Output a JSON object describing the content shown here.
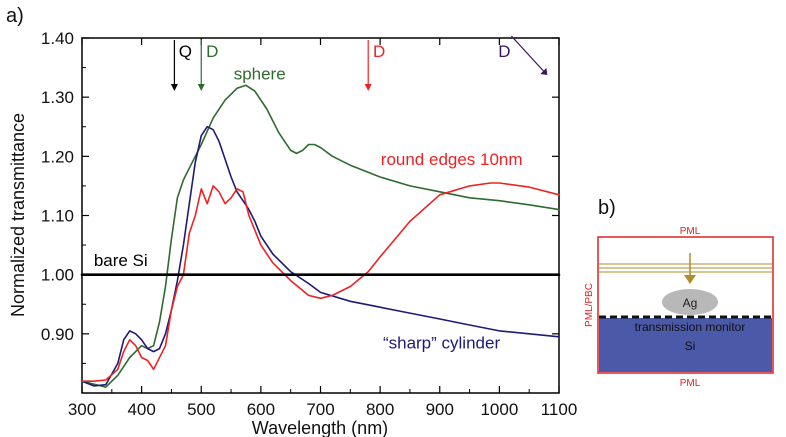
{
  "panel_a_label": "a)",
  "panel_b_label": "b)",
  "colors": {
    "sphere": "#2e6b2e",
    "round_edges": "#ee2222",
    "sharp_cylinder": "#1f1a78",
    "bare_si": "#000000",
    "arrow_Q": "#000000",
    "arrow_D_sphere": "#2e6b2e",
    "arrow_D_round": "#ee2222",
    "arrow_D_sharp": "#3a145e",
    "schematic_border": "#e02020",
    "si_fill": "#4b5aa8",
    "ag_fill": "#b8b8b8",
    "source_lines": "#b08d2a"
  },
  "chart_data": {
    "type": "line",
    "xlabel": "Wavelength (nm)",
    "ylabel": "Normalized transmittance",
    "xlim": [
      300,
      1100
    ],
    "ylim": [
      0.8,
      1.4
    ],
    "x_ticks": [
      "300",
      "400",
      "500",
      "600",
      "700",
      "800",
      "900",
      "1000",
      "1100"
    ],
    "y_ticks": [
      "0.90",
      "1.00",
      "1.10",
      "1.20",
      "1.30",
      "1.40"
    ],
    "grid": false,
    "series": [
      {
        "name": "sphere",
        "color_key": "sphere",
        "x": [
          300,
          320,
          340,
          360,
          380,
          400,
          410,
          420,
          430,
          440,
          450,
          460,
          470,
          480,
          500,
          520,
          540,
          560,
          575,
          590,
          610,
          630,
          650,
          660,
          670,
          680,
          690,
          700,
          720,
          750,
          800,
          850,
          900,
          950,
          1000,
          1050,
          1100
        ],
        "y": [
          0.82,
          0.815,
          0.81,
          0.83,
          0.86,
          0.88,
          0.875,
          0.88,
          0.92,
          0.98,
          1.06,
          1.13,
          1.16,
          1.18,
          1.22,
          1.265,
          1.295,
          1.315,
          1.32,
          1.31,
          1.28,
          1.24,
          1.21,
          1.205,
          1.21,
          1.22,
          1.22,
          1.215,
          1.2,
          1.185,
          1.165,
          1.15,
          1.14,
          1.13,
          1.125,
          1.118,
          1.11
        ]
      },
      {
        "name": "round edges 10nm",
        "color_key": "round_edges",
        "x": [
          300,
          320,
          340,
          360,
          370,
          380,
          390,
          400,
          410,
          420,
          440,
          450,
          460,
          470,
          480,
          490,
          500,
          510,
          520,
          530,
          540,
          550,
          560,
          570,
          580,
          600,
          620,
          650,
          680,
          700,
          720,
          750,
          780,
          800,
          850,
          900,
          950,
          985,
          1000,
          1050,
          1100
        ],
        "y": [
          0.82,
          0.82,
          0.822,
          0.84,
          0.87,
          0.89,
          0.88,
          0.86,
          0.855,
          0.84,
          0.88,
          0.94,
          0.98,
          1.0,
          1.07,
          1.1,
          1.145,
          1.12,
          1.15,
          1.14,
          1.12,
          1.13,
          1.145,
          1.14,
          1.1,
          1.05,
          1.02,
          0.99,
          0.965,
          0.96,
          0.965,
          0.98,
          1.005,
          1.03,
          1.09,
          1.135,
          1.15,
          1.155,
          1.155,
          1.148,
          1.135
        ]
      },
      {
        "name": "“sharp” cylinder",
        "color_key": "sharp_cylinder",
        "x": [
          300,
          320,
          340,
          360,
          370,
          380,
          390,
          400,
          410,
          420,
          430,
          440,
          450,
          460,
          470,
          480,
          490,
          500,
          510,
          520,
          530,
          540,
          550,
          560,
          570,
          580,
          590,
          600,
          620,
          650,
          680,
          700,
          750,
          800,
          850,
          900,
          950,
          1000,
          1050,
          1100
        ],
        "y": [
          0.82,
          0.812,
          0.814,
          0.85,
          0.89,
          0.905,
          0.9,
          0.89,
          0.875,
          0.87,
          0.875,
          0.9,
          0.94,
          0.99,
          1.05,
          1.12,
          1.19,
          1.235,
          1.25,
          1.245,
          1.225,
          1.195,
          1.165,
          1.14,
          1.125,
          1.11,
          1.09,
          1.065,
          1.035,
          1.005,
          0.985,
          0.97,
          0.955,
          0.945,
          0.935,
          0.925,
          0.915,
          0.905,
          0.9,
          0.895
        ]
      },
      {
        "name": "bare Si",
        "color_key": "bare_si",
        "x": [
          300,
          1100
        ],
        "y": [
          1.0,
          1.0
        ]
      }
    ],
    "annotations": [
      {
        "text": "sphere",
        "x": 598,
        "y": 1.33,
        "color_key": "sphere"
      },
      {
        "text": "round edges 10nm",
        "x": 920,
        "y": 1.185,
        "color_key": "round_edges"
      },
      {
        "text": "bare Si",
        "x": 365,
        "y": 1.015,
        "color_key": "bare_si"
      },
      {
        "text": "“sharp” cylinder",
        "x": 903,
        "y": 0.875,
        "color_key": "sharp_cylinder"
      }
    ],
    "markers": [
      {
        "label": "Q",
        "x": 455,
        "color_key": "arrow_Q"
      },
      {
        "label": "D",
        "x": 500,
        "color_key": "arrow_D_sphere"
      },
      {
        "label": "D",
        "x": 780,
        "color_key": "arrow_D_round"
      },
      {
        "label": "D",
        "x": 1000,
        "color_key": "arrow_D_sharp",
        "off_axis": true
      }
    ]
  },
  "schematic": {
    "top_label": "PML",
    "bottom_label": "PML",
    "side_label": "PML/PBC",
    "particle_label": "Ag",
    "monitor_label": "transmission monitor",
    "substrate_label": "Si"
  }
}
